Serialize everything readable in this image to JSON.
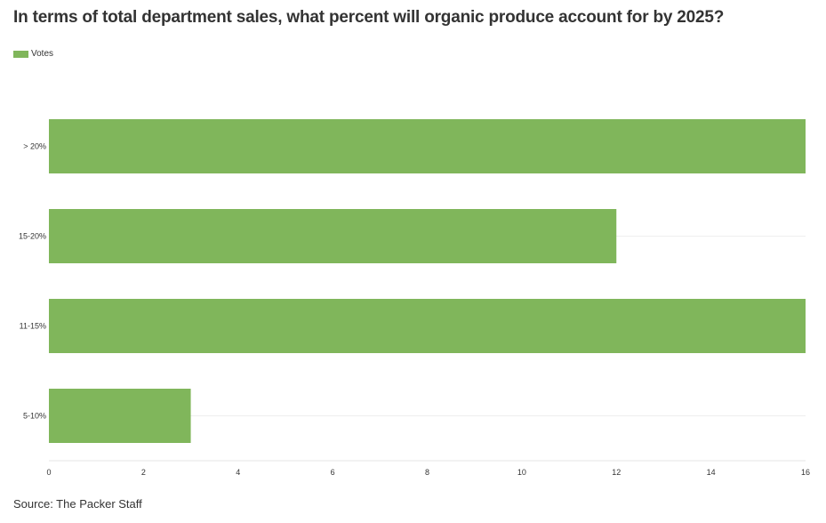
{
  "chart_data": {
    "type": "bar",
    "orientation": "horizontal",
    "title": "In terms of total department sales, what percent will organic produce account for by 2025?",
    "categories": [
      "> 20%",
      "15-20%",
      "11-15%",
      "5-10%"
    ],
    "series": [
      {
        "name": "Votes",
        "values": [
          16,
          12,
          16,
          3
        ],
        "color": "#80b65b"
      }
    ],
    "xlim": [
      0,
      16
    ],
    "xticks": [
      0,
      2,
      4,
      6,
      8,
      10,
      12,
      14,
      16
    ],
    "xlabel": "",
    "ylabel": "",
    "grid": true,
    "legend_position": "top-left",
    "source": "Source: The Packer Staff"
  }
}
